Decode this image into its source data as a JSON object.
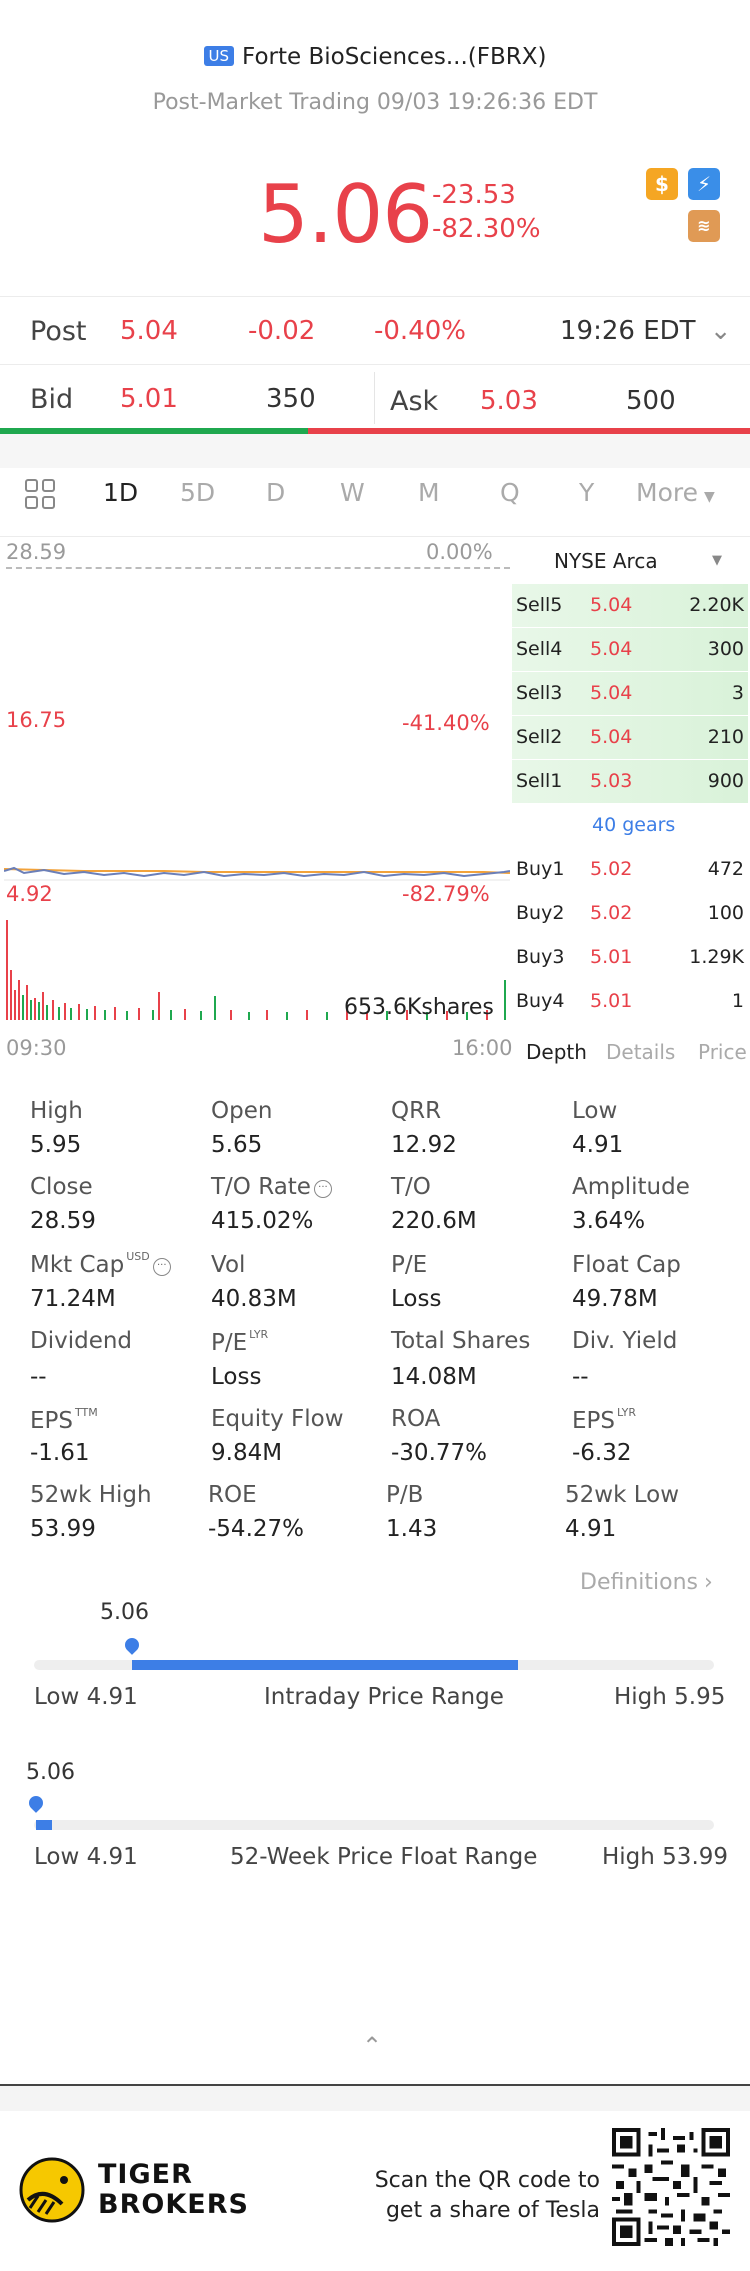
{
  "header": {
    "market_badge": "US",
    "title": "Forte BioSciences...(FBRX)",
    "subtitle": "Post-Market Trading 09/03 19:26:36 EDT",
    "price": "5.06",
    "change": "-23.53",
    "change_pct": "-82.30%",
    "icons": [
      "dollar-icon",
      "lightning-icon",
      "layers-icon"
    ]
  },
  "post": {
    "label": "Post",
    "price": "5.04",
    "change": "-0.02",
    "change_pct": "-0.40%",
    "time": "19:26 EDT"
  },
  "quote": {
    "bid_label": "Bid",
    "bid_price": "5.01",
    "bid_size": "350",
    "ask_label": "Ask",
    "ask_price": "5.03",
    "ask_size": "500"
  },
  "tabs": [
    "1D",
    "5D",
    "D",
    "W",
    "M",
    "Q",
    "Y",
    "More"
  ],
  "chart": {
    "y_top": "28.59",
    "y_top_pct": "0.00%",
    "y_mid": "16.75",
    "y_mid_pct": "-41.40%",
    "y_low": "4.92",
    "y_low_pct": "-82.79%",
    "volume": "653.6Kshares",
    "x_start": "09:30",
    "x_end": "16:00"
  },
  "depth": {
    "exchange": "NYSE Arca",
    "sells": [
      {
        "label": "Sell5",
        "price": "5.04",
        "size": "2.20K"
      },
      {
        "label": "Sell4",
        "price": "5.04",
        "size": "300"
      },
      {
        "label": "Sell3",
        "price": "5.04",
        "size": "3"
      },
      {
        "label": "Sell2",
        "price": "5.04",
        "size": "210"
      },
      {
        "label": "Sell1",
        "price": "5.03",
        "size": "900"
      }
    ],
    "gears": "40 gears",
    "buys": [
      {
        "label": "Buy1",
        "price": "5.02",
        "size": "472"
      },
      {
        "label": "Buy2",
        "price": "5.02",
        "size": "100"
      },
      {
        "label": "Buy3",
        "price": "5.01",
        "size": "1.29K"
      },
      {
        "label": "Buy4",
        "price": "5.01",
        "size": "1"
      }
    ],
    "tabs": [
      "Depth",
      "Details",
      "Price"
    ]
  },
  "stats": {
    "high_l": "High",
    "high_v": "5.95",
    "open_l": "Open",
    "open_v": "5.65",
    "qrr_l": "QRR",
    "qrr_v": "12.92",
    "low_l": "Low",
    "low_v": "4.91",
    "close_l": "Close",
    "close_v": "28.59",
    "tor_l": "T/O Rate",
    "tor_v": "415.02%",
    "to_l": "T/O",
    "to_v": "220.6M",
    "amp_l": "Amplitude",
    "amp_v": "3.64%",
    "mkt_l": "Mkt Cap",
    "mkt_sup": "USD",
    "mkt_v": "71.24M",
    "vol_l": "Vol",
    "vol_v": "40.83M",
    "pe_l": "P/E",
    "pe_v": "Loss",
    "float_l": "Float Cap",
    "float_v": "49.78M",
    "div_l": "Dividend",
    "div_v": "--",
    "pelyr_l": "P/E",
    "pelyr_sup": "LYR",
    "pelyr_v": "Loss",
    "tsh_l": "Total Shares",
    "tsh_v": "14.08M",
    "dy_l": "Div. Yield",
    "dy_v": "--",
    "eps_l": "EPS",
    "eps_sup": "TTM",
    "eps_v": "-1.61",
    "ef_l": "Equity Flow",
    "ef_v": "9.84M",
    "roa_l": "ROA",
    "roa_v": "-30.77%",
    "epslyr_l": "EPS",
    "epslyr_sup": "LYR",
    "epslyr_v": "-6.32",
    "h52_l": "52wk High",
    "h52_v": "53.99",
    "roe_l": "ROE",
    "roe_v": "-54.27%",
    "pb_l": "P/B",
    "pb_v": "1.43",
    "l52_l": "52wk Low",
    "l52_v": "4.91",
    "definitions": "Definitions"
  },
  "ranges": {
    "intraday": {
      "current": "5.06",
      "low": "Low 4.91",
      "title": "Intraday Price Range",
      "high": "High 5.95",
      "low_value": 4.91,
      "high_value": 5.95,
      "current_value": 5.06
    },
    "week52": {
      "current": "5.06",
      "low": "Low 4.91",
      "title": "52-Week Price Float Range",
      "high": "High 53.99",
      "low_value": 4.91,
      "high_value": 53.99,
      "current_value": 5.06
    }
  },
  "footer": {
    "brand_line1": "TIGER",
    "brand_line2": "BROKERS",
    "qr_line1": "Scan the QR code to",
    "qr_line2": "get a share of Tesla"
  }
}
